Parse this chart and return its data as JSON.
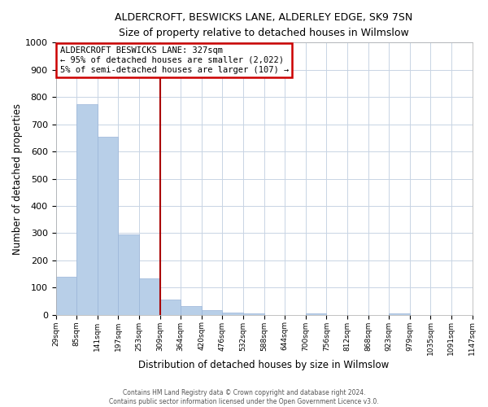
{
  "title": "ALDERCROFT, BESWICKS LANE, ALDERLEY EDGE, SK9 7SN",
  "subtitle": "Size of property relative to detached houses in Wilmslow",
  "xlabel": "Distribution of detached houses by size in Wilmslow",
  "ylabel": "Number of detached properties",
  "bar_values": [
    140,
    775,
    655,
    295,
    135,
    57,
    32,
    18,
    8,
    5,
    0,
    0,
    5,
    0,
    0,
    0,
    5,
    0,
    0,
    0
  ],
  "tick_labels": [
    "29sqm",
    "85sqm",
    "141sqm",
    "197sqm",
    "253sqm",
    "309sqm",
    "364sqm",
    "420sqm",
    "476sqm",
    "532sqm",
    "588sqm",
    "644sqm",
    "700sqm",
    "756sqm",
    "812sqm",
    "868sqm",
    "923sqm",
    "979sqm",
    "1035sqm",
    "1091sqm",
    "1147sqm"
  ],
  "bar_color": "#b8cfe8",
  "bar_edge_color": "#9ab5d8",
  "vline_x": 5,
  "vline_color": "#aa0000",
  "annotation_title": "ALDERCROFT BESWICKS LANE: 327sqm",
  "annotation_line2": "← 95% of detached houses are smaller (2,022)",
  "annotation_line3": "5% of semi-detached houses are larger (107) →",
  "annotation_box_color": "#ffffff",
  "annotation_box_edge_color": "#cc0000",
  "ylim": [
    0,
    1000
  ],
  "yticks": [
    0,
    100,
    200,
    300,
    400,
    500,
    600,
    700,
    800,
    900,
    1000
  ],
  "footer_line1": "Contains HM Land Registry data © Crown copyright and database right 2024.",
  "footer_line2": "Contains public sector information licensed under the Open Government Licence v3.0.",
  "bg_color": "#ffffff",
  "grid_color": "#c8d4e4"
}
